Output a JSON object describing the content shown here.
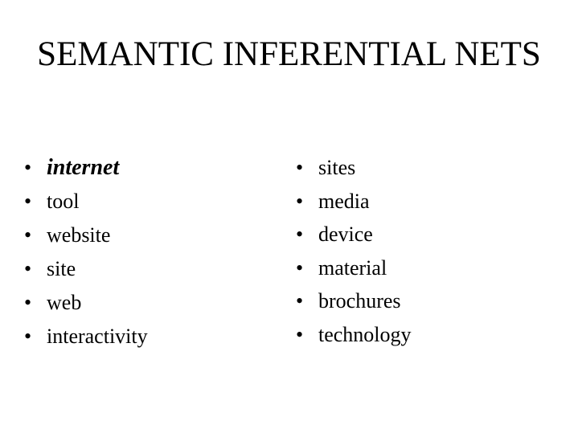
{
  "slide": {
    "title": "SEMANTIC INFERENTIAL NETS",
    "bullet_glyph": "•",
    "left_column": [
      {
        "text": "internet",
        "emphasis": true
      },
      {
        "text": "tool",
        "emphasis": false
      },
      {
        "text": "website",
        "emphasis": false
      },
      {
        "text": "site",
        "emphasis": false
      },
      {
        "text": "web",
        "emphasis": false
      },
      {
        "text": "interactivity",
        "emphasis": false
      }
    ],
    "right_column": [
      {
        "text": "sites",
        "emphasis": false
      },
      {
        "text": "media",
        "emphasis": false
      },
      {
        "text": "device",
        "emphasis": false
      },
      {
        "text": "material",
        "emphasis": false
      },
      {
        "text": "brochures",
        "emphasis": false
      },
      {
        "text": "technology",
        "emphasis": false
      }
    ]
  }
}
